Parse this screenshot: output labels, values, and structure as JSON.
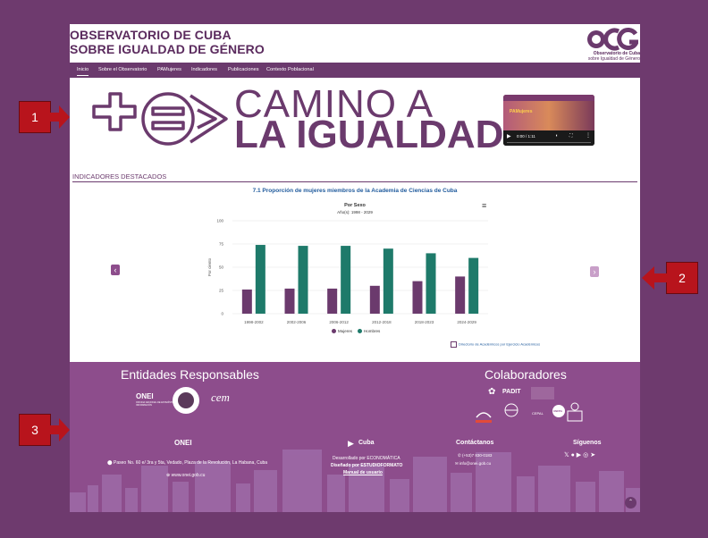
{
  "header": {
    "title_line1": "OBSERVATORIO DE CUBA",
    "title_line2": "SOBRE IGUALDAD DE GÉNERO",
    "logo_text": "OCG",
    "logo_sub1": "Observatorio de Cuba",
    "logo_sub2": "sobre Igualdad de Género"
  },
  "nav": {
    "items": [
      "Inicio",
      "Sobre el Observatorio",
      "PAMujeres",
      "Indicadores",
      "Publicaciones",
      "Contexto Poblacional"
    ]
  },
  "hero": {
    "line1": "CAMINO A",
    "line2": "LA IGUALDAD",
    "video_time": "0:00 / 1:11",
    "video_thumb_text": "PAMujeres"
  },
  "section": {
    "title": "INDICADORES DESTACADOS"
  },
  "chart_data": {
    "type": "bar",
    "title": "7.1 Proporción de mujeres miembros de la Academia de Ciencias de Cuba",
    "subtitle": "Por Sexo",
    "subtitle2": "Año(s): 1998 - 2029",
    "ylabel": "Por ciento",
    "xlabel": "",
    "ylim": [
      0,
      100
    ],
    "yticks": [
      "100",
      "75",
      "50",
      "25",
      "0"
    ],
    "categories": [
      "1998-2002",
      "2002-2006",
      "2006-2012",
      "2012-2018",
      "2018-2023",
      "2024-2029"
    ],
    "series": [
      {
        "name": "Mujeres",
        "color": "#6b3a6d",
        "values": [
          26,
          27,
          27,
          30,
          35,
          40
        ]
      },
      {
        "name": "Hombres",
        "color": "#1e7a6a",
        "values": [
          74,
          73,
          73,
          70,
          65,
          60
        ]
      }
    ],
    "grid": true,
    "legend": "bottom"
  },
  "chart_ui": {
    "menu_icon": "hamburger-icon",
    "directory_link": "Directorio de Académicos por Ejercicio Académicos"
  },
  "footer": {
    "entities_title": "Entidades Responsables",
    "collab_title": "Colaboradores",
    "onei": "ONEI",
    "onei_sub": "OFICINA NACIONAL DE ESTADÍSTICA E INFORMACIÓN",
    "cem": "cem",
    "padit": "PADIT",
    "cepal": "CEPAL",
    "unfpa": "UNFPA",
    "address": "Paseo No. 60 e/ 3ra y 5ta, Vedado, Plaza de la Revolución, La Habana, Cuba",
    "website": "www.onei.gob.cu",
    "cuba_logo": "Cuba",
    "developed_by": "Desarrollado por ECONOMÁTICA",
    "designed_by": "Diseñado por ESTUDIOFORMATO",
    "manual": "Manual de usuario",
    "contact_title": "Contáctanos",
    "phone": "(+53)7 830-0183",
    "email": "info@onei.gob.cu",
    "follow_title": "Síguenos"
  },
  "markers": [
    "1",
    "2",
    "3"
  ],
  "colors": {
    "brand": "#6b3a6d",
    "teal": "#1e7a6a",
    "footer": "#8d4d8c",
    "marker": "#b8141c"
  }
}
